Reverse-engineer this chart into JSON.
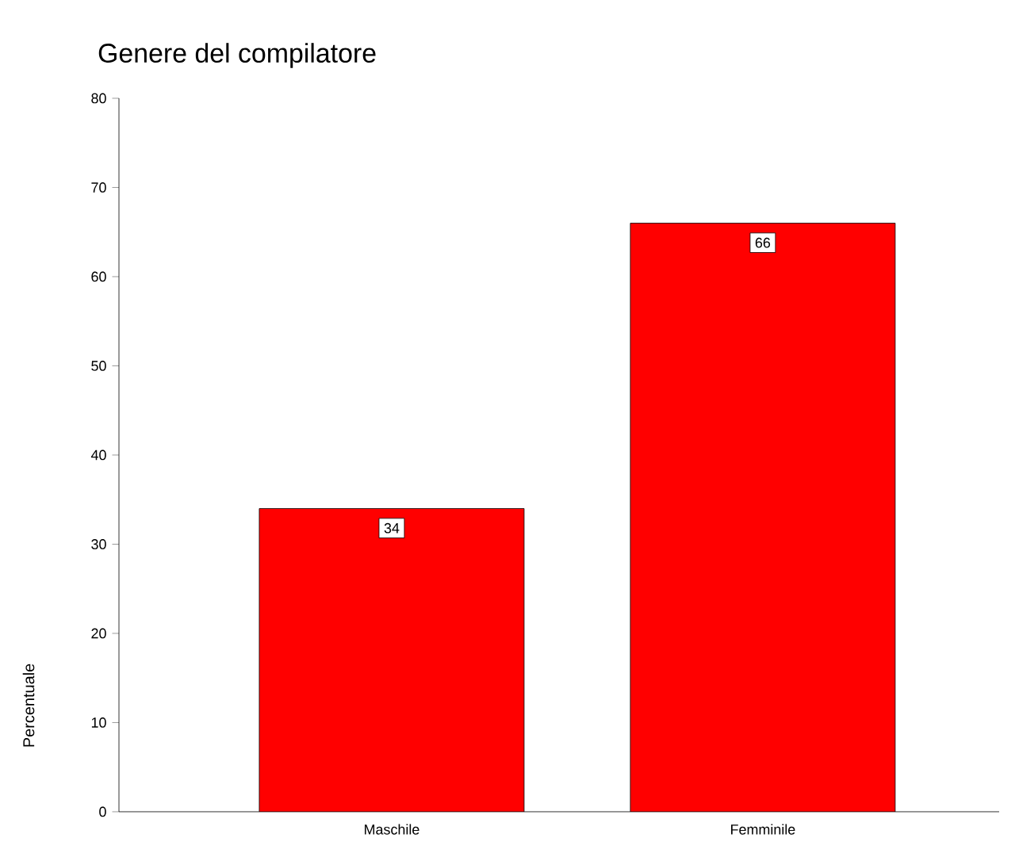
{
  "chart_data": {
    "type": "bar",
    "title": "Genere del compilatore",
    "ylabel": "Percentuale",
    "categories": [
      "Maschile",
      "Femminile"
    ],
    "values": [
      34,
      66
    ],
    "color": "#ff0000",
    "ylim": [
      0,
      80
    ],
    "yticks": [
      0,
      10,
      20,
      30,
      40,
      50,
      60,
      70,
      80
    ],
    "data_labels": true
  }
}
